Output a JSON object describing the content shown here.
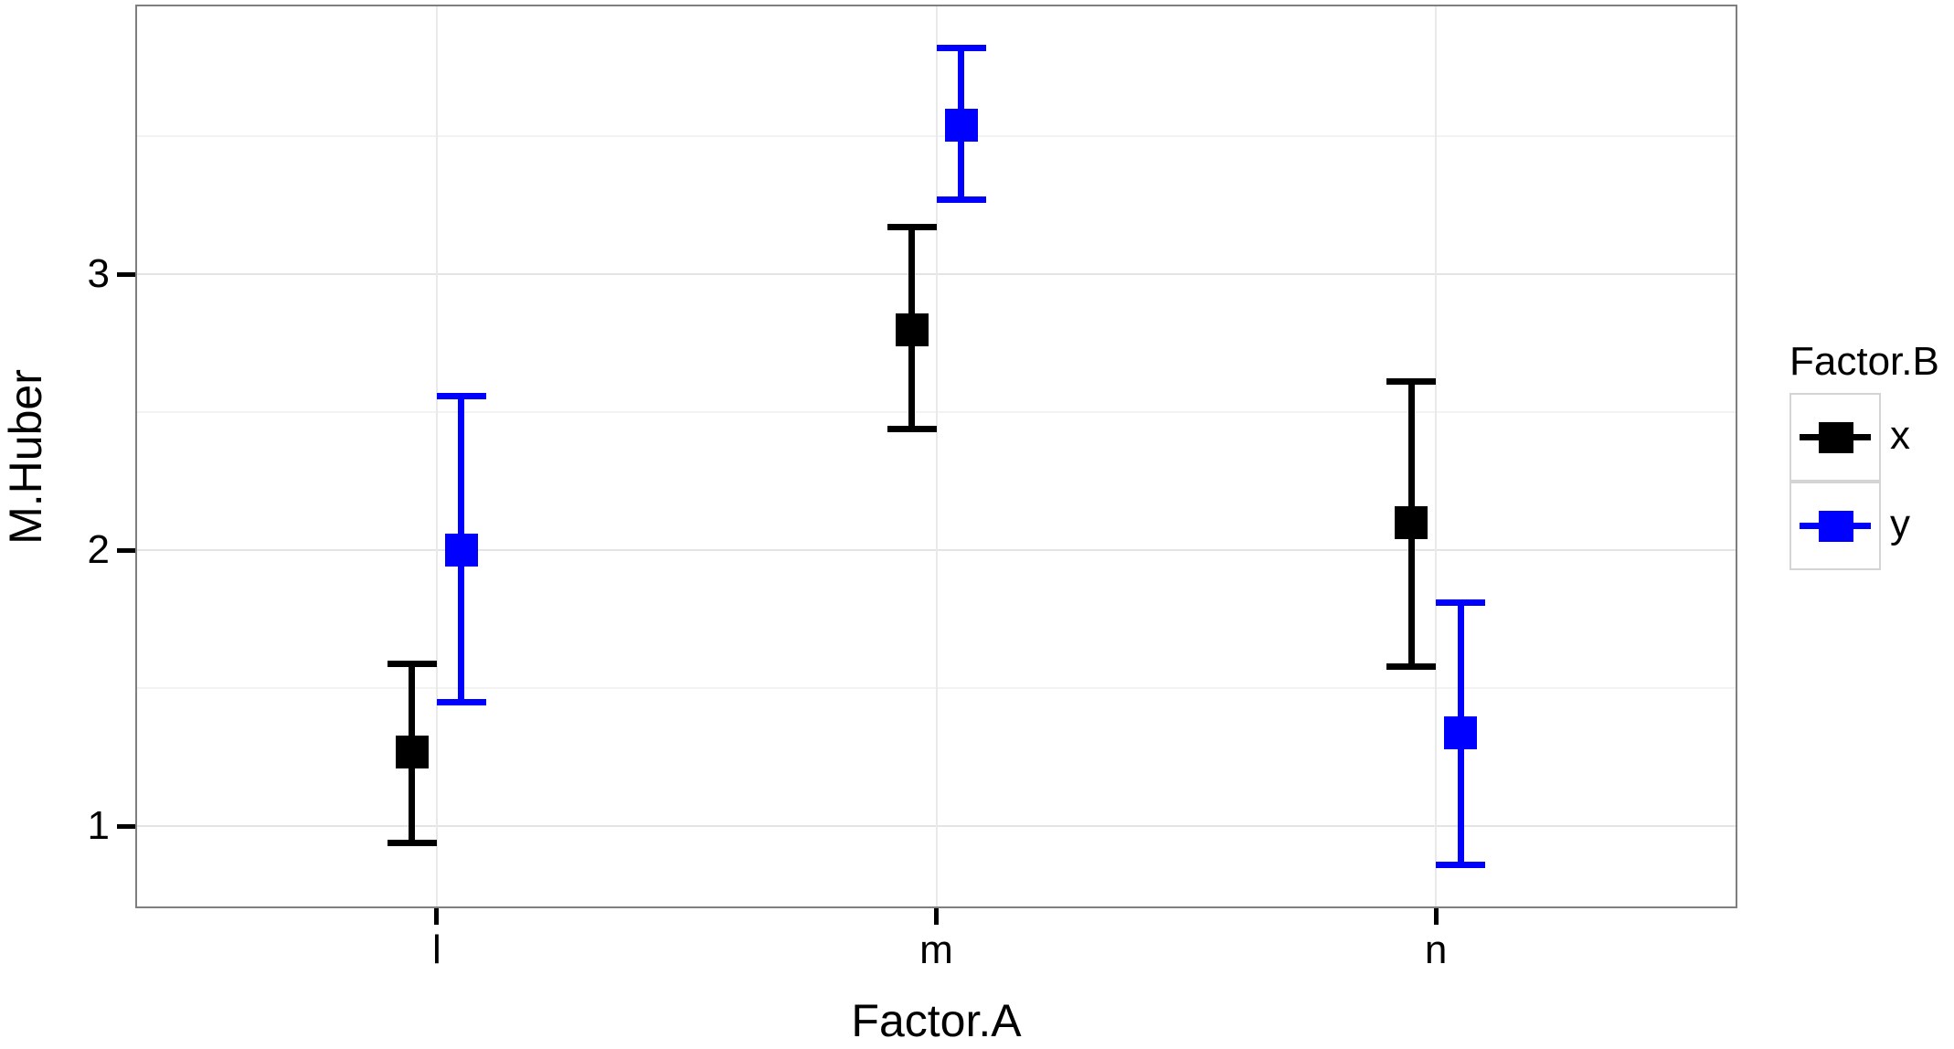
{
  "chart_data": {
    "type": "pointrange",
    "title": "",
    "xlabel": "Factor.A",
    "ylabel": "M.Huber",
    "categories": [
      "l",
      "m",
      "n"
    ],
    "y_ticks": [
      1,
      2,
      3
    ],
    "y_tick_labels": [
      "1",
      "2",
      "3"
    ],
    "y_minor_ticks": [
      1.5,
      2.5,
      3.5
    ],
    "ylim": [
      0.71,
      3.97
    ],
    "grid": true,
    "legend": {
      "title": "Factor.B",
      "position": "right",
      "entries": [
        {
          "label": "x",
          "color": "#000000"
        },
        {
          "label": "y",
          "color": "#0000ff"
        }
      ]
    },
    "series": [
      {
        "name": "x",
        "color": "#000000",
        "points": [
          {
            "category": "l",
            "mean": 1.27,
            "lower": 0.94,
            "upper": 1.59
          },
          {
            "category": "m",
            "mean": 2.8,
            "lower": 2.44,
            "upper": 3.17
          },
          {
            "category": "n",
            "mean": 2.1,
            "lower": 1.58,
            "upper": 2.61
          }
        ]
      },
      {
        "name": "y",
        "color": "#0000ff",
        "points": [
          {
            "category": "l",
            "mean": 2.0,
            "lower": 1.45,
            "upper": 2.56
          },
          {
            "category": "m",
            "mean": 3.54,
            "lower": 3.27,
            "upper": 3.82
          },
          {
            "category": "n",
            "mean": 1.34,
            "lower": 0.86,
            "upper": 1.81
          }
        ]
      }
    ],
    "marker": "square"
  },
  "colors": {
    "panel_border": "#7f7f7f",
    "grid_major": "#e4e4e4",
    "grid_minor": "#f2f2f2",
    "axis_text": "#000000",
    "series_x": "#000000",
    "series_y": "#0000ff"
  }
}
